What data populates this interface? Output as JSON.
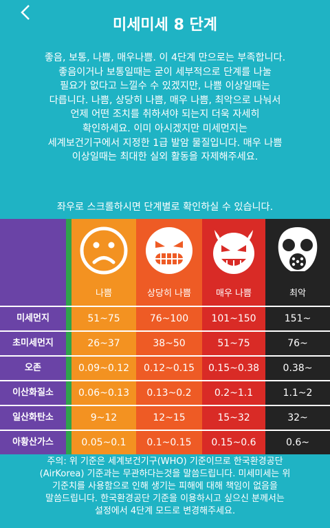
{
  "header": {
    "back_icon": "chevron-left-icon",
    "title": "미세미세 8 단계"
  },
  "intro": "좋음, 보통, 나쁨, 매우나쁨. 이 4단계 만으로는 부족합니다.\n좋음이거나 보통일때는 굳이 세부적으로 단계를 나눌\n필요가 없다고 느낄수 수 있겠지만, 나쁨 이상일때는\n다릅니다. 나쁨, 상당히 나쁨, 매우 나쁨, 최악으로 나눠서\n언제 어떤 조치를 취하셔야 되는지 더욱 자세히\n확인하세요. 이미 아시겠지만 미세먼지는\n세계보건기구에서 지정한 1급 발암 물질입니다. 매우 나쁨\n이상일때는 최대한 실외 활동을 자제해주세요.",
  "hint": "좌우로 스크롤하시면 단계별로 확인하실 수 있습니다.",
  "levels": [
    {
      "label": "나쁨",
      "color": "#f39221",
      "face_icon": "frown-face-icon"
    },
    {
      "label": "상당히 나쁨",
      "color": "#ee5b25",
      "face_icon": "grimace-face-icon"
    },
    {
      "label": "매우 나쁨",
      "color": "#d92b26",
      "face_icon": "devil-face-icon"
    },
    {
      "label": "최악",
      "color": "#232323",
      "face_icon": "gas-mask-icon"
    }
  ],
  "rows": [
    {
      "name": "미세먼지",
      "values": [
        "51~75",
        "76~100",
        "101~150",
        "151~"
      ]
    },
    {
      "name": "초미세먼지",
      "values": [
        "26~37",
        "38~50",
        "51~75",
        "76~"
      ]
    },
    {
      "name": "오존",
      "values": [
        "0.09~0.12",
        "0.12~0.15",
        "0.15~0.38",
        "0.38~"
      ]
    },
    {
      "name": "이산화질소",
      "values": [
        "0.06~0.13",
        "0.13~0.2",
        "0.2~1.1",
        "1.1~2"
      ]
    },
    {
      "name": "일산화탄소",
      "values": [
        "9~12",
        "12~15",
        "15~32",
        "32~"
      ]
    },
    {
      "name": "아황산가스",
      "values": [
        "0.05~0.1",
        "0.1~0.15",
        "0.15~0.6",
        "0.6~"
      ]
    }
  ],
  "note": "주의: 위 기준은 세계보건기구(WHO) 기준이므로 한국환경공단\n(AirKorea) 기준과는 무관하다는것을 말씀드립니다. 미세미세는 위\n기준치를 사용함으로 인해 생기는 피해에 대해 책임이 없음을\n말씀드립니다. 한국환경공단 기준을 이용하시고 싶으신 분께서는\n설정에서 4단계 모드로 변경해주세요."
}
